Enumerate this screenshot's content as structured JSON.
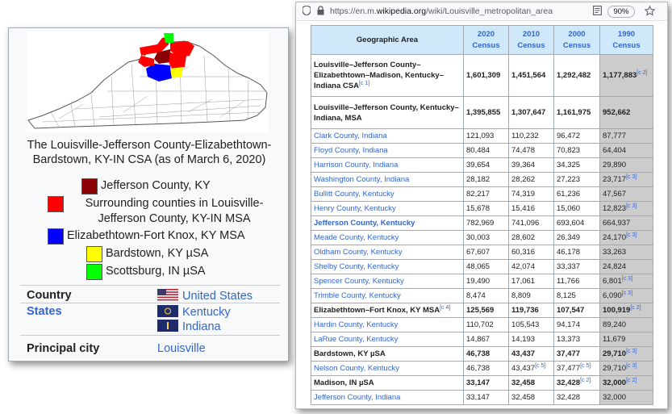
{
  "infobox": {
    "caption": "The Louisville-Jefferson County-Elizabethtown-Bardstown, KY-IN CSA (as of March 6, 2020)",
    "legend": [
      {
        "color": "#8b0000",
        "label": "Jefferson County, KY"
      },
      {
        "color": "#ff0000",
        "label": "Surrounding counties in Louisville-Jefferson County, KY-IN MSA"
      },
      {
        "color": "#0000ff",
        "label": "Elizabethtown-Fort Knox, KY MSA"
      },
      {
        "color": "#ffff00",
        "label": "Bardstown, KY µSA"
      },
      {
        "color": "#00ff00",
        "label": "Scottsburg, IN µSA"
      }
    ],
    "country_label": "Country",
    "country_value": "United States",
    "states_label": "States",
    "states": [
      "Kentucky",
      "Indiana"
    ],
    "principal_city_label": "Principal city",
    "principal_city_value": "Louisville"
  },
  "browser": {
    "url_prefix": "https://en.m.",
    "url_host": "wikipedia.org",
    "url_path": "/wiki/Louisville_metropolitan_area",
    "zoom": "90%"
  },
  "table": {
    "header_area": "Geographic Area",
    "years": [
      {
        "year": "2020",
        "word": "Census"
      },
      {
        "year": "2010",
        "word": "Census"
      },
      {
        "year": "2000",
        "word": "Census"
      },
      {
        "year": "1990",
        "word": "Census"
      }
    ],
    "rows": [
      {
        "name": "Louisville–Jefferson County–Elizabethtown–Madison, Kentucky–Indiana CSA",
        "note": "[c 1]",
        "v2020": "1,601,309",
        "v2010": "1,451,564",
        "v2000": "1,292,482",
        "v1990": "1,177,883",
        "note1990": "[c 2]",
        "bold": true,
        "link": false
      },
      {
        "name": "Louisville–Jefferson County, Kentucky–Indiana, MSA",
        "note": "",
        "v2020": "1,395,855",
        "v2010": "1,307,647",
        "v2000": "1,161,975",
        "v1990": "952,662",
        "note1990": "",
        "bold": true,
        "link": false
      },
      {
        "name": "Clark County, Indiana",
        "note": "",
        "v2020": "121,093",
        "v2010": "110,232",
        "v2000": "96,472",
        "v1990": "87,777",
        "note1990": "",
        "bold": false,
        "link": true
      },
      {
        "name": "Floyd County, Indiana",
        "note": "",
        "v2020": "80,484",
        "v2010": "74,478",
        "v2000": "70,823",
        "v1990": "64,404",
        "note1990": "",
        "bold": false,
        "link": true
      },
      {
        "name": "Harrison County, Indiana",
        "note": "",
        "v2020": "39,654",
        "v2010": "39,364",
        "v2000": "34,325",
        "v1990": "29,890",
        "note1990": "",
        "bold": false,
        "link": true
      },
      {
        "name": "Washington County, Indiana",
        "note": "",
        "v2020": "28,182",
        "v2010": "28,262",
        "v2000": "27,223",
        "v1990": "23,717",
        "note1990": "[c 3]",
        "bold": false,
        "link": true
      },
      {
        "name": "Bullitt County, Kentucky",
        "note": "",
        "v2020": "82,217",
        "v2010": "74,319",
        "v2000": "61,236",
        "v1990": "47,567",
        "note1990": "",
        "bold": false,
        "link": true
      },
      {
        "name": "Henry County, Kentucky",
        "note": "",
        "v2020": "15,678",
        "v2010": "15,416",
        "v2000": "15,060",
        "v1990": "12,823",
        "note1990": "[c 3]",
        "bold": false,
        "link": true
      },
      {
        "name": "Jefferson County, Kentucky",
        "note": "",
        "v2020": "782,969",
        "v2010": "741,096",
        "v2000": "693,604",
        "v1990": "664,937",
        "note1990": "",
        "bold": false,
        "link": true,
        "boldname": true
      },
      {
        "name": "Meade County, Kentucky",
        "note": "",
        "v2020": "30,003",
        "v2010": "28,602",
        "v2000": "26,349",
        "v1990": "24,170",
        "note1990": "[c 3]",
        "bold": false,
        "link": true
      },
      {
        "name": "Oldham County, Kentucky",
        "note": "",
        "v2020": "67,607",
        "v2010": "60,316",
        "v2000": "46,178",
        "v1990": "33,263",
        "note1990": "",
        "bold": false,
        "link": true
      },
      {
        "name": "Shelby County, Kentucky",
        "note": "",
        "v2020": "48,065",
        "v2010": "42,074",
        "v2000": "33,337",
        "v1990": "24,824",
        "note1990": "",
        "bold": false,
        "link": true
      },
      {
        "name": "Spencer County, Kentucky",
        "note": "",
        "v2020": "19,490",
        "v2010": "17,061",
        "v2000": "11,766",
        "v1990": "6,801",
        "note1990": "[c 3]",
        "bold": false,
        "link": true
      },
      {
        "name": "Trimble County, Kentucky",
        "note": "",
        "v2020": "8,474",
        "v2010": "8,809",
        "v2000": "8,125",
        "v1990": "6,090",
        "note1990": "[c 3]",
        "bold": false,
        "link": true
      },
      {
        "name": "Elizabethtown–Fort Knox, KY MSA",
        "note": "[c 4]",
        "v2020": "125,569",
        "v2010": "119,736",
        "v2000": "107,547",
        "v1990": "100,919",
        "note1990": "[c 2]",
        "bold": true,
        "link": false
      },
      {
        "name": "Hardin County, Kentucky",
        "note": "",
        "v2020": "110,702",
        "v2010": "105,543",
        "v2000": "94,174",
        "v1990": "89,240",
        "note1990": "",
        "bold": false,
        "link": true
      },
      {
        "name": "LaRue County, Kentucky",
        "note": "",
        "v2020": "14,867",
        "v2010": "14,193",
        "v2000": "13,373",
        "v1990": "11,679",
        "note1990": "",
        "bold": false,
        "link": true
      },
      {
        "name": "Bardstown, KY µSA",
        "note": "",
        "v2020": "46,738",
        "v2010": "43,437",
        "v2000": "37,477",
        "v1990": "29,710",
        "note1990": "[c 3]",
        "bold": true,
        "link": false
      },
      {
        "name": "Nelson County, Kentucky",
        "note": "",
        "v2020": "46,738",
        "v2010": "43,437",
        "note2010": "[c 5]",
        "v2000": "37,477",
        "note2000": "[c 5]",
        "v1990": "29,710",
        "note1990": "[c 3]",
        "bold": false,
        "link": true
      },
      {
        "name": "Madison, IN µSA",
        "note": "",
        "v2020": "33,147",
        "v2010": "32,458",
        "v2000": "32,428",
        "note2000": "[c 2]",
        "v1990": "32,000",
        "note1990": "[c 2]",
        "bold": true,
        "link": false
      },
      {
        "name": "Jefferson County, Indiana",
        "note": "",
        "v2020": "33,147",
        "v2010": "32,458",
        "v2000": "32,428",
        "v1990": "32,000",
        "note1990": "",
        "bold": false,
        "link": true
      }
    ]
  }
}
